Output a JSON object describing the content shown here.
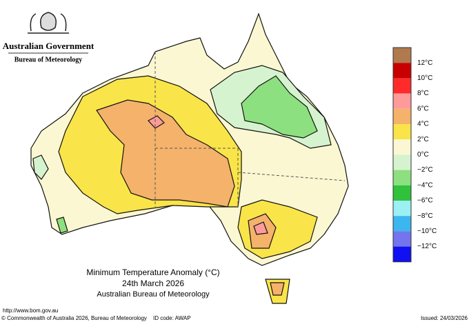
{
  "header": {
    "government": "Australian Government",
    "bureau": "Bureau of Meteorology"
  },
  "title": {
    "line1": "Minimum Temperature Anomaly (°C)",
    "line2": "24th March 2026",
    "line3": "Australian Bureau of Meteorology"
  },
  "legend": {
    "swatch_colors": [
      "#b07a4e",
      "#c80000",
      "#ff2a2a",
      "#ff9a9a",
      "#f5b26b",
      "#f9e44a",
      "#fbf7d2",
      "#d6f3cf",
      "#8de07f",
      "#2fc23a",
      "#9af0f3",
      "#3cb6ee",
      "#7474ee",
      "#1010f0"
    ],
    "labels": [
      "12°C",
      "10°C",
      "8°C",
      "6°C",
      "4°C",
      "2°C",
      "0°C",
      "−2°C",
      "−4°C",
      "−6°C",
      "−8°C",
      "−10°C",
      "−12°C"
    ]
  },
  "footer": {
    "url": "http://www.bom.gov.au",
    "copyright": "© Commonwealth of Australia 2026, Bureau of Meteorology",
    "id_code": "ID code: AWAP",
    "issued": "Issued: 24/03/2026"
  }
}
